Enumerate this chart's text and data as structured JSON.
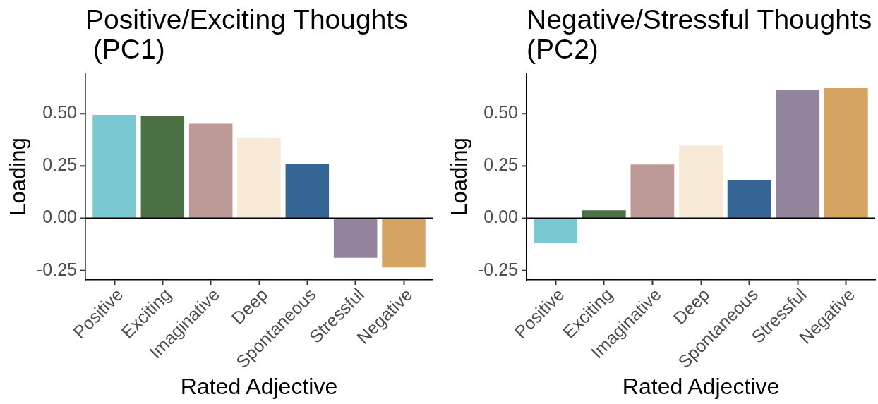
{
  "chart_data": [
    {
      "type": "bar",
      "title": "Positive/Exciting Thoughts\n (PC1)",
      "xlabel": "Rated Adjective",
      "ylabel": "Loading",
      "categories": [
        "Positive",
        "Exciting",
        "Imaginative",
        "Deep",
        "Spontaneous",
        "Stressful",
        "Negative"
      ],
      "values": [
        0.494,
        0.491,
        0.452,
        0.383,
        0.261,
        -0.19,
        -0.235
      ],
      "colors": [
        "#7ac9d2",
        "#4a7044",
        "#bd9997",
        "#f6ead6",
        "#356594",
        "#93849e",
        "#d5a462"
      ],
      "ylim": [
        -0.295,
        0.693
      ],
      "yticks": [
        {
          "value": -0.25,
          "label": "-0.25"
        },
        {
          "value": 0,
          "label": "0.00"
        },
        {
          "value": 0.25,
          "label": "0.25"
        },
        {
          "value": 0.5,
          "label": "0.50"
        }
      ],
      "ref_lines": [
        {
          "axis": "y",
          "value": 0
        }
      ]
    },
    {
      "type": "bar",
      "title": "Negative/Stressful Thoughts\n(PC2)",
      "xlabel": "Rated Adjective",
      "ylabel": "Loading",
      "categories": [
        "Positive",
        "Exciting",
        "Imaginative",
        "Deep",
        "Spontaneous",
        "Stressful",
        "Negative"
      ],
      "values": [
        -0.119,
        0.038,
        0.257,
        0.347,
        0.181,
        0.612,
        0.622
      ],
      "colors": [
        "#7ac9d2",
        "#4a7044",
        "#bd9997",
        "#f6ead6",
        "#356594",
        "#93849e",
        "#d5a462"
      ],
      "ylim": [
        -0.295,
        0.693
      ],
      "yticks": [
        {
          "value": -0.25,
          "label": "-0.25"
        },
        {
          "value": 0,
          "label": "0.00"
        },
        {
          "value": 0.25,
          "label": "0.25"
        },
        {
          "value": 0.5,
          "label": "0.50"
        }
      ],
      "ref_lines": [
        {
          "axis": "y",
          "value": 0
        }
      ]
    }
  ]
}
